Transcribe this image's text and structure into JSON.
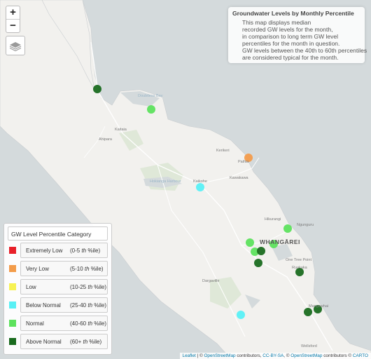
{
  "map": {
    "zoom_in": "+",
    "zoom_out": "−",
    "layers_icon": "layers-icon",
    "colors": {
      "land": "#f2f1ee",
      "sea": "#d4dadc",
      "park": "#dfe8d8",
      "road": "#ffffff"
    }
  },
  "info": {
    "title": "Groundwater Levels by Monthly Percentile",
    "lines": [
      "This map displays median",
      "recorded GW levels for the month,",
      "in comparison to long term GW level",
      "percentiles for the month in question.",
      "GW levels between the 40th to 60th percentiles",
      "are considered typical for the month."
    ]
  },
  "legend": {
    "title": "GW Level Percentile Category",
    "items": [
      {
        "name": "Extremely Low",
        "pre": "(0-5 ",
        "th": "th",
        "post": "%ile)",
        "color": "#e8202a"
      },
      {
        "name": "Very Low",
        "pre": "(5-10 ",
        "th": "th",
        "post": "%ile)",
        "color": "#f39c4b"
      },
      {
        "name": "Low",
        "pre": "(10-25 ",
        "th": "th",
        "post": "%ile)",
        "color": "#f7f254"
      },
      {
        "name": "Below Normal",
        "pre": "(25-40 ",
        "th": "th",
        "post": "%ile)",
        "color": "#58f0f5"
      },
      {
        "name": "Normal",
        "pre": "(40-60 ",
        "th": "th",
        "post": "%ile)",
        "color": "#5de25d"
      },
      {
        "name": "Above Normal",
        "pre": "(60+ ",
        "th": "th",
        "post": "%ile)",
        "color": "#1a6b1f"
      }
    ]
  },
  "places": {
    "doubtless_bay": "Doubtless Bay",
    "kaitaia": "Kaitaia",
    "ahipara": "Ahipara",
    "kerikeri": "Kerikeri",
    "paihia": "Paihia",
    "hokianga": "Hokianga Harbour",
    "kaikohe": "Kaikohe",
    "kawakawa": "Kawakawa",
    "hikurangi": "Hikurangi",
    "ngunguru": "Ngunguru",
    "whangarei": "WHANGĀREI",
    "one_tree_point": "One Tree Point",
    "ruakaka": "Ruakaka",
    "dargaville": "Dargaville",
    "mangawhai": "Mangawhai",
    "wellsford": "Wellsford"
  },
  "attribution": {
    "leaflet": "Leaflet",
    "osm1": "OpenStreetMap",
    "contrib1": "contributors, ",
    "ccbysa": "CC-BY-SA",
    "osm2": "OpenStreetMap",
    "contrib2": "contributors ©",
    "carto": "CARTO"
  },
  "markers": [
    {
      "category": "Above Normal"
    },
    {
      "category": "Normal"
    },
    {
      "category": "Very Low"
    },
    {
      "category": "Below Normal"
    },
    {
      "category": "Normal"
    },
    {
      "category": "Normal"
    },
    {
      "category": "Normal"
    },
    {
      "category": "Normal"
    },
    {
      "category": "Above Normal"
    },
    {
      "category": "Above Normal"
    },
    {
      "category": "Above Normal"
    },
    {
      "category": "Above Normal"
    },
    {
      "category": "Above Normal"
    },
    {
      "category": "Below Normal"
    }
  ]
}
